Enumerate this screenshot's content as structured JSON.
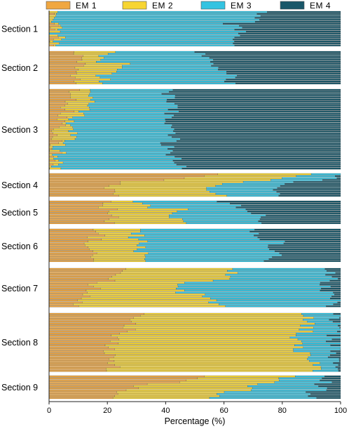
{
  "chart_data": {
    "type": "bar",
    "orientation": "horizontal",
    "stacked": true,
    "xlabel": "Percentage (%)",
    "xlim": [
      0,
      100
    ],
    "xticks": [
      "0",
      "20",
      "40",
      "60",
      "80",
      "100"
    ],
    "legend_position": "top",
    "series": [
      {
        "name": "EM 1",
        "color": "#F0A740"
      },
      {
        "name": "EM 2",
        "color": "#F7D532"
      },
      {
        "name": "EM 3",
        "color": "#33C3E1"
      },
      {
        "name": "EM 4",
        "color": "#195769"
      }
    ],
    "sections": [
      {
        "label": "Section 1",
        "start": [
          [
            1,
            1,
            73
          ],
          [
            2,
            2,
            55
          ],
          [
            2,
            5,
            60
          ]
        ],
        "end": [
          [
            1,
            2,
            65
          ],
          [
            1,
            2,
            74
          ],
          [
            1,
            1,
            75
          ]
        ]
      },
      {
        "label": "Section 2",
        "start": [
          [
            10,
            20,
            52
          ],
          [
            13,
            35,
            48
          ],
          [
            9,
            20,
            60
          ]
        ],
        "end": [
          [
            8,
            18,
            62
          ],
          [
            10,
            15,
            65
          ],
          [
            6,
            10,
            65
          ]
        ]
      },
      {
        "label": "Section 3",
        "start": [
          [
            8,
            15,
            40
          ],
          [
            6,
            12,
            38
          ],
          [
            6,
            10,
            30
          ]
        ],
        "end": [
          [
            1,
            2,
            45
          ],
          [
            1,
            3,
            48
          ],
          [
            1,
            1,
            48
          ]
        ]
      },
      {
        "label": "Section 4",
        "start": [
          [
            55,
            88,
            100
          ],
          [
            30,
            80,
            98
          ],
          [
            20,
            45,
            68
          ]
        ],
        "end": [
          [
            25,
            58,
            78
          ],
          [
            12,
            40,
            65
          ],
          [
            8,
            35,
            82
          ]
        ]
      },
      {
        "label": "Section 5",
        "start": [
          [
            20,
            30,
            60
          ],
          [
            25,
            48,
            65
          ],
          [
            18,
            35,
            72
          ]
        ],
        "end": [
          [
            22,
            45,
            75
          ],
          [
            20,
            40,
            78
          ],
          [
            12,
            50,
            78
          ]
        ]
      },
      {
        "label": "Section 6",
        "start": [
          [
            18,
            30,
            70
          ],
          [
            15,
            35,
            80
          ],
          [
            12,
            30,
            82
          ]
        ],
        "end": [
          [
            14,
            32,
            76
          ],
          [
            10,
            28,
            75
          ],
          [
            10,
            30,
            78
          ]
        ]
      },
      {
        "label": "Section 7",
        "start": [
          [
            25,
            65,
            95
          ],
          [
            18,
            40,
            90
          ],
          [
            15,
            35,
            100
          ]
        ],
        "end": [
          [
            10,
            60,
            98
          ],
          [
            12,
            50,
            100
          ],
          [
            8,
            42,
            100
          ]
        ]
      },
      {
        "label": "Section 8",
        "start": [
          [
            30,
            88,
            98
          ],
          [
            22,
            85,
            97
          ],
          [
            18,
            80,
            96
          ]
        ],
        "end": [
          [
            22,
            92,
            98
          ],
          [
            20,
            86,
            99
          ],
          [
            18,
            90,
            100
          ]
        ]
      },
      {
        "label": "Section 9",
        "start": [
          [
            55,
            83,
            95
          ],
          [
            40,
            78,
            92
          ],
          [
            30,
            60,
            85
          ]
        ],
        "end": [
          [
            22,
            58,
            90
          ],
          [
            18,
            62,
            95
          ],
          [
            20,
            70,
            97
          ]
        ]
      }
    ]
  }
}
